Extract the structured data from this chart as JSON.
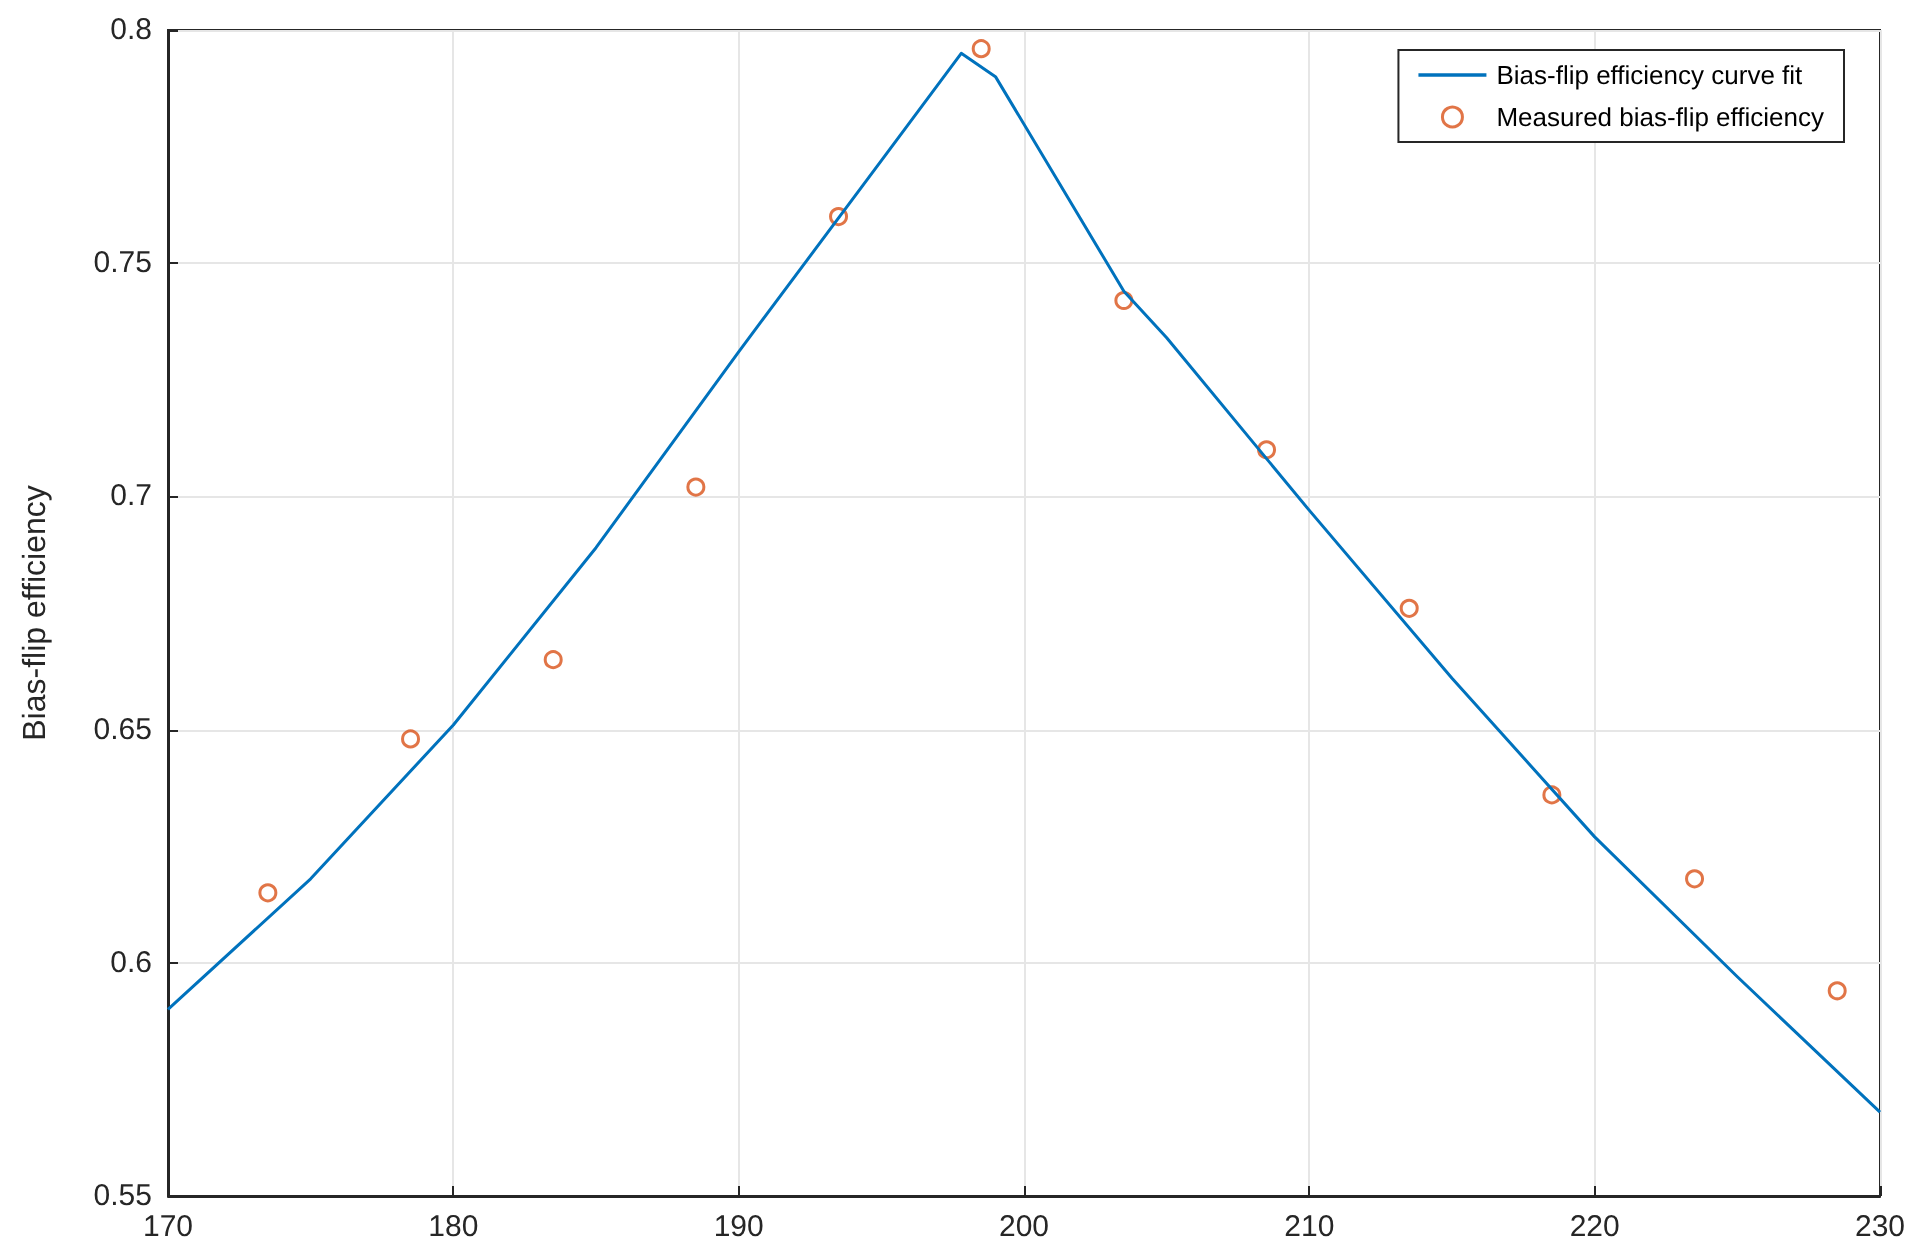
{
  "chart_data": {
    "type": "line",
    "ylabel": "Bias-flip efficiency",
    "series": [
      {
        "name": "Bias-flip efficiency curve fit",
        "color": "#0072bd",
        "marker": "none",
        "line_style": "solid",
        "x": [
          170,
          175,
          180,
          185,
          190,
          195,
          197.8,
          199,
          203.5,
          205,
          210,
          215,
          220,
          225,
          230
        ],
        "values": [
          0.59,
          0.618,
          0.651,
          0.689,
          0.731,
          0.772,
          0.795,
          0.79,
          0.744,
          0.734,
          0.697,
          0.661,
          0.627,
          0.597,
          0.568
        ]
      },
      {
        "name": "Measured bias-flip efficiency",
        "type": "scatter",
        "color": "#d95319",
        "marker": "circle",
        "x": [
          173.5,
          178.5,
          183.5,
          188.5,
          193.5,
          198.5,
          203.5,
          208.5,
          213.5,
          218.5,
          223.5,
          228.5
        ],
        "values": [
          0.615,
          0.648,
          0.665,
          0.702,
          0.76,
          0.796,
          0.742,
          0.71,
          0.676,
          0.636,
          0.618,
          0.594
        ]
      }
    ],
    "xlim": [
      170,
      230
    ],
    "xticks": [
      170,
      180,
      190,
      200,
      210,
      220,
      230
    ],
    "ylim": [
      0.55,
      0.8
    ],
    "yticks": [
      0.55,
      0.6,
      0.65,
      0.7,
      0.75,
      0.8
    ],
    "grid": true,
    "legend": "top right"
  }
}
